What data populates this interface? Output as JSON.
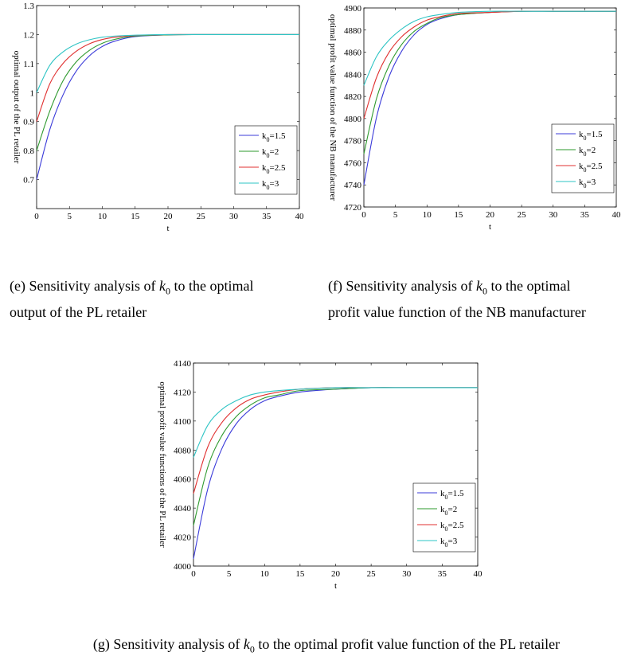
{
  "chart_data": [
    {
      "id": "e",
      "type": "line",
      "xlabel": "t",
      "ylabel": "optimal output of the PL retailer",
      "xlim": [
        0,
        40
      ],
      "ylim": [
        0.6,
        1.3
      ],
      "xticks": [
        0,
        5,
        10,
        15,
        20,
        25,
        30,
        35,
        40
      ],
      "yticks": [
        0.7,
        0.8,
        0.9,
        1,
        1.1,
        1.2,
        1.3
      ],
      "ytick_labels": [
        "0.7",
        "0.8",
        "0.9",
        "1",
        "1.1",
        "1.2",
        "1.3"
      ],
      "legend_position": "bottom-right",
      "series": [
        {
          "name": "k0=1.5",
          "color": "#3b3bd9",
          "x": [
            0,
            2,
            4,
            6,
            8,
            10,
            12,
            15,
            20,
            25,
            30,
            35,
            40
          ],
          "values": [
            0.7,
            0.872,
            0.991,
            1.073,
            1.126,
            1.159,
            1.178,
            1.193,
            1.199,
            1.2,
            1.2,
            1.2,
            1.2
          ]
        },
        {
          "name": "k0=2",
          "color": "#2e9a2e",
          "x": [
            0,
            2,
            4,
            6,
            8,
            10,
            12,
            15,
            20,
            25,
            30,
            35,
            40
          ],
          "values": [
            0.8,
            0.936,
            1.04,
            1.105,
            1.145,
            1.17,
            1.184,
            1.195,
            1.199,
            1.2,
            1.2,
            1.2,
            1.2
          ]
        },
        {
          "name": "k0=2.5",
          "color": "#e03030",
          "x": [
            0,
            2,
            4,
            6,
            8,
            10,
            12,
            15,
            20,
            25,
            30,
            35,
            40
          ],
          "values": [
            0.9,
            1.03,
            1.1,
            1.142,
            1.168,
            1.183,
            1.191,
            1.197,
            1.2,
            1.2,
            1.2,
            1.2,
            1.2
          ]
        },
        {
          "name": "k0=3",
          "color": "#2ec4c4",
          "x": [
            0,
            2,
            4,
            6,
            8,
            10,
            12,
            15,
            20,
            25,
            30,
            35,
            40
          ],
          "values": [
            1.0,
            1.094,
            1.14,
            1.167,
            1.182,
            1.191,
            1.195,
            1.198,
            1.2,
            1.2,
            1.2,
            1.2,
            1.2
          ]
        }
      ]
    },
    {
      "id": "f",
      "type": "line",
      "xlabel": "t",
      "ylabel": "optimal profit value function of the NB manufacturer",
      "xlim": [
        0,
        40
      ],
      "ylim": [
        4720,
        4900
      ],
      "xticks": [
        0,
        5,
        10,
        15,
        20,
        25,
        30,
        35,
        40
      ],
      "yticks": [
        4720,
        4740,
        4760,
        4780,
        4800,
        4820,
        4840,
        4860,
        4880,
        4900
      ],
      "ytick_labels": [
        "4720",
        "4740",
        "4760",
        "4780",
        "4800",
        "4820",
        "4840",
        "4860",
        "4880",
        "4900"
      ],
      "legend_position": "bottom-right",
      "series": [
        {
          "name": "k0=1.5",
          "color": "#3b3bd9",
          "x": [
            0,
            2,
            4,
            6,
            8,
            10,
            12,
            15,
            20,
            25,
            30,
            35,
            40
          ],
          "values": [
            4740,
            4801,
            4838,
            4861,
            4876,
            4885,
            4890,
            4894,
            4896,
            4897,
            4897,
            4897,
            4897
          ]
        },
        {
          "name": "k0=2",
          "color": "#2e9a2e",
          "x": [
            0,
            2,
            4,
            6,
            8,
            10,
            12,
            15,
            20,
            25,
            30,
            35,
            40
          ],
          "values": [
            4768,
            4818,
            4848,
            4867,
            4879,
            4886,
            4891,
            4894,
            4896,
            4897,
            4897,
            4897,
            4897
          ]
        },
        {
          "name": "k0=2.5",
          "color": "#e03030",
          "x": [
            0,
            2,
            4,
            6,
            8,
            10,
            12,
            15,
            20,
            25,
            30,
            35,
            40
          ],
          "values": [
            4800,
            4837,
            4860,
            4874,
            4883,
            4889,
            4892,
            4895,
            4896,
            4897,
            4897,
            4897,
            4897
          ]
        },
        {
          "name": "k0=3",
          "color": "#2ec4c4",
          "x": [
            0,
            2,
            4,
            6,
            8,
            10,
            12,
            15,
            20,
            25,
            30,
            35,
            40
          ],
          "values": [
            4830,
            4856,
            4871,
            4881,
            4888,
            4892,
            4894,
            4896,
            4897,
            4897,
            4897,
            4897,
            4897
          ]
        }
      ]
    },
    {
      "id": "g",
      "type": "line",
      "xlabel": "t",
      "ylabel": "optimal profit value functions of the PL retailer",
      "xlim": [
        0,
        40
      ],
      "ylim": [
        4000,
        4140
      ],
      "xticks": [
        0,
        5,
        10,
        15,
        20,
        25,
        30,
        35,
        40
      ],
      "yticks": [
        4000,
        4020,
        4040,
        4060,
        4080,
        4100,
        4120,
        4140
      ],
      "ytick_labels": [
        "4000",
        "4020",
        "4040",
        "4060",
        "4080",
        "4100",
        "4120",
        "4140"
      ],
      "legend_position": "bottom-right",
      "series": [
        {
          "name": "k0=1.5",
          "color": "#3b3bd9",
          "x": [
            0,
            2,
            4,
            6,
            8,
            10,
            12,
            15,
            20,
            25,
            30,
            35,
            40
          ],
          "values": [
            4005,
            4053,
            4081,
            4098,
            4108,
            4114,
            4117,
            4120,
            4122,
            4123,
            4123,
            4123,
            4123
          ]
        },
        {
          "name": "k0=2",
          "color": "#2e9a2e",
          "x": [
            0,
            2,
            4,
            6,
            8,
            10,
            12,
            15,
            20,
            25,
            30,
            35,
            40
          ],
          "values": [
            4028,
            4068,
            4090,
            4103,
            4111,
            4116,
            4118,
            4121,
            4122,
            4123,
            4123,
            4123,
            4123
          ]
        },
        {
          "name": "k0=2.5",
          "color": "#e03030",
          "x": [
            0,
            2,
            4,
            6,
            8,
            10,
            12,
            15,
            20,
            25,
            30,
            35,
            40
          ],
          "values": [
            4050,
            4082,
            4099,
            4109,
            4115,
            4118,
            4120,
            4122,
            4123,
            4123,
            4123,
            4123,
            4123
          ]
        },
        {
          "name": "k0=3",
          "color": "#2ec4c4",
          "x": [
            0,
            2,
            4,
            6,
            8,
            10,
            12,
            15,
            20,
            25,
            30,
            35,
            40
          ],
          "values": [
            4075,
            4097,
            4108,
            4114,
            4118,
            4120,
            4121,
            4122,
            4123,
            4123,
            4123,
            4123,
            4123
          ]
        }
      ]
    }
  ],
  "legend_labels": [
    {
      "base": "k",
      "sub": "0",
      "rest": "=1.5"
    },
    {
      "base": "k",
      "sub": "0",
      "rest": "=2"
    },
    {
      "base": "k",
      "sub": "0",
      "rest": "=2.5"
    },
    {
      "base": "k",
      "sub": "0",
      "rest": "=3"
    }
  ],
  "captions": {
    "e": {
      "before": "(e) Sensitivity analysis of ",
      "k": "k",
      "sub": "0",
      "after": " to the optimal",
      "line2": "output of the PL retailer"
    },
    "f": {
      "before": "(f) Sensitivity analysis of ",
      "k": "k",
      "sub": "0",
      "after": " to the optimal",
      "line2": "profit value function of the NB manufacturer"
    },
    "g": {
      "before": "(g) Sensitivity analysis of ",
      "k": "k",
      "sub": "0",
      "after": " to the optimal profit value function of the PL retailer"
    }
  }
}
